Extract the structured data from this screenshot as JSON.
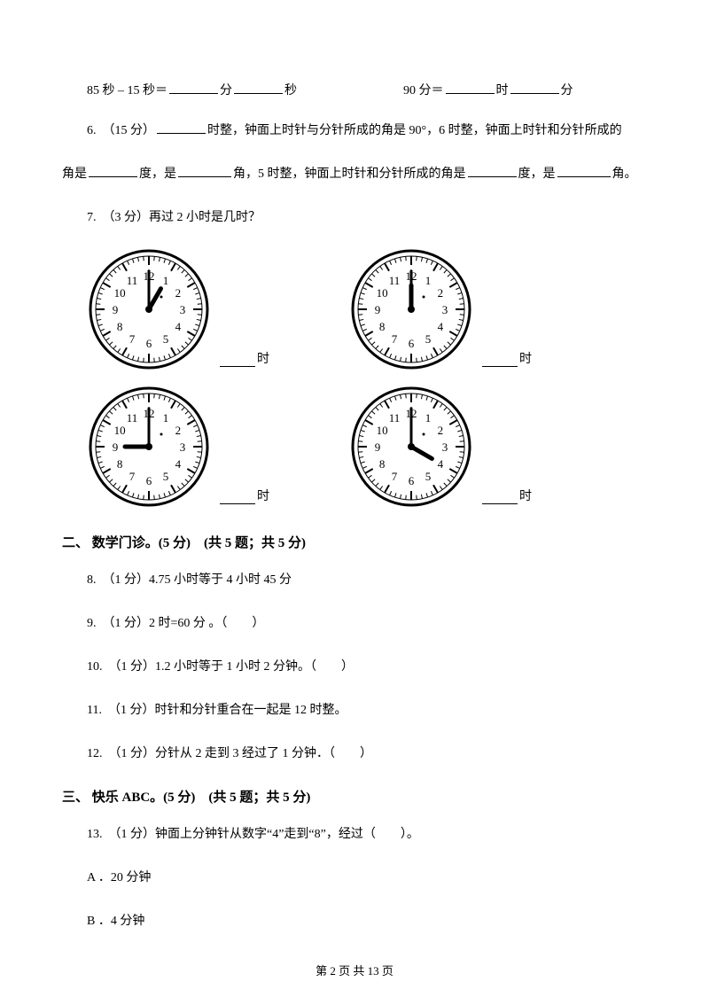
{
  "q5": {
    "left_prefix": "85 秒 – 15 秒＝",
    "left_unit1": "分",
    "left_unit2": "秒",
    "right_prefix": "90 分＝",
    "right_unit1": "时",
    "right_unit2": "分"
  },
  "q6": {
    "prefix": "6.　（15 分）",
    "text_a": "时整，钟面上时针与分针所成的角是 90°，6 时整，钟面上时针和分针所成的",
    "text_b_1": "角是",
    "text_b_2": "度，是",
    "text_b_3": "角，5 时整，钟面上时针和分针所成的角是",
    "text_b_4": "度，是",
    "text_b_5": "角。"
  },
  "q7": {
    "text": "7.　（3 分）再过 2 小时是几时？",
    "label": "时",
    "clocks": [
      {
        "hour_angle": 30,
        "minute_angle": 0
      },
      {
        "hour_angle": 0,
        "minute_angle": 0
      },
      {
        "hour_angle": 270,
        "minute_angle": 0
      },
      {
        "hour_angle": 120,
        "minute_angle": 0
      }
    ]
  },
  "section2": {
    "title": "二、 数学门诊。(5 分)　(共 5 题；共 5 分)",
    "items": [
      "8.　（1 分）4.75 小时等于 4 小时 45 分",
      "9.　（1 分）2 时=60 分 。（　　）",
      "10.　（1 分）1.2 小时等于 1 小时 2 分钟。（　　）",
      "11.　（1 分）时针和分针重合在一起是 12 时整。",
      "12.　（1 分）分针从 2 走到 3 经过了 1 分钟．（　　）"
    ]
  },
  "section3": {
    "title": "三、 快乐 ABC。(5 分)　(共 5 题；共 5 分)",
    "q13": "13.　（1 分）钟面上分钟针从数字“4”走到“8”，经过（　　）。",
    "opt_a": "A ．20 分钟",
    "opt_b": "B ．4 分钟"
  },
  "footer": "第 2 页 共 13 页",
  "style": {
    "clock_size": 140,
    "clock_stroke": "#000000",
    "clock_fill": "#ffffff"
  }
}
